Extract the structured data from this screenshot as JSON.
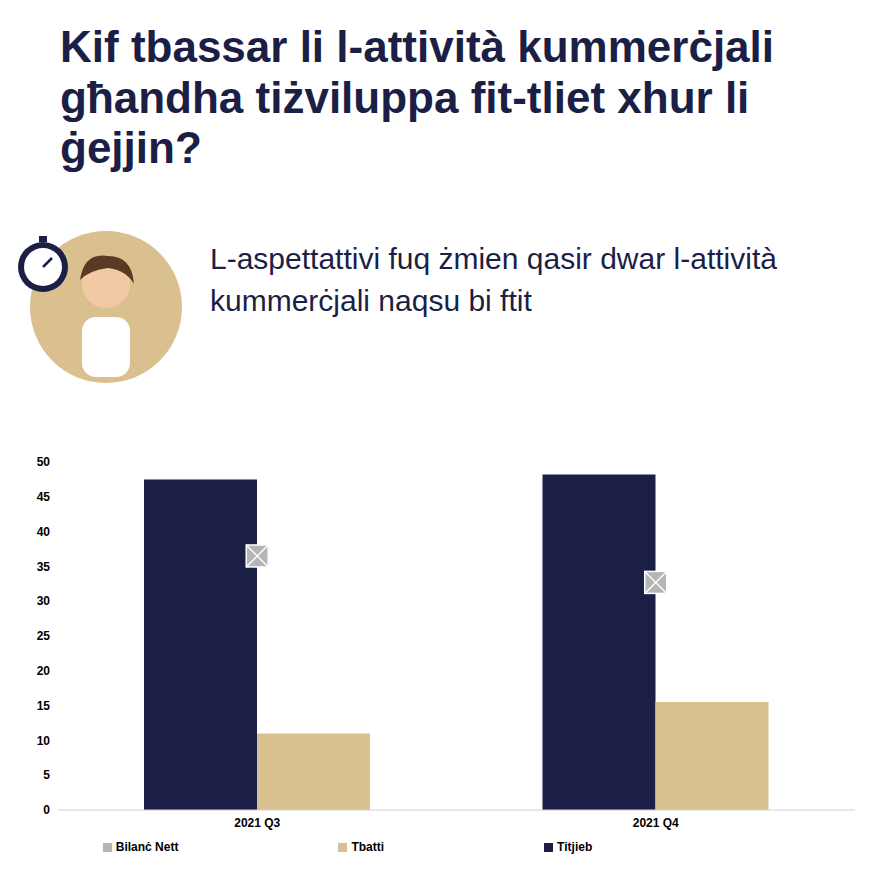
{
  "chart_data": {
    "type": "bar",
    "title": "Kif tbassar li l-attività kummerċjali għandha tiżviluppa fit-tliet xhur li ġejjin?",
    "subtitle": "L-aspettattivi fuq żmien qasir dwar l-attività kummerċjali naqsu bi ftit",
    "categories": [
      "2021 Q3",
      "2021 Q4"
    ],
    "series": [
      {
        "name": "Titjieb",
        "type": "bar",
        "color": "#1b1f45",
        "values": [
          47.5,
          48.2
        ]
      },
      {
        "name": "Tbatti",
        "type": "bar",
        "color": "#d8c18f",
        "values": [
          11,
          15.5
        ]
      },
      {
        "name": "Bilanċ Nett",
        "type": "scatter",
        "marker": "square",
        "color": "#b5b5b5",
        "values": [
          36.5,
          32.7
        ]
      }
    ],
    "ylim": [
      0,
      50
    ],
    "yticks": [
      0,
      5,
      10,
      15,
      20,
      25,
      30,
      35,
      40,
      45,
      50
    ],
    "grid": false,
    "legend": "bottom"
  }
}
